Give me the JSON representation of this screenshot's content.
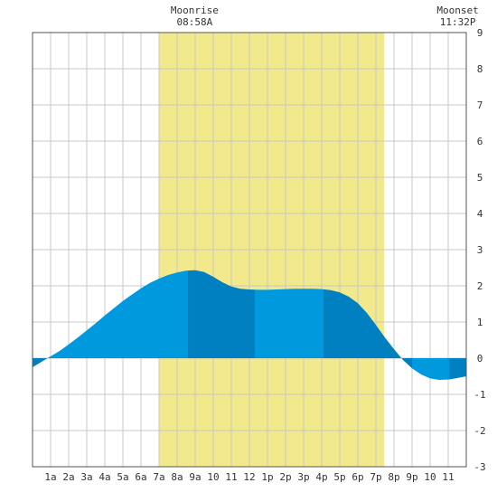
{
  "chart_data": {
    "type": "area",
    "title": "",
    "xlabel": "",
    "ylabel": "",
    "x_ticks": [
      "1a",
      "2a",
      "3a",
      "4a",
      "5a",
      "6a",
      "7a",
      "8a",
      "9a",
      "10",
      "11",
      "12",
      "1p",
      "2p",
      "3p",
      "4p",
      "5p",
      "6p",
      "7p",
      "8p",
      "9p",
      "10",
      "11"
    ],
    "xlim": [
      0,
      24
    ],
    "ylim": [
      -3,
      9
    ],
    "y_ticks": [
      -3,
      -2,
      -1,
      0,
      1,
      2,
      3,
      4,
      5,
      6,
      7,
      8,
      9
    ],
    "grid": true,
    "daylight_band": {
      "start_hour": 7.0,
      "end_hour": 19.45,
      "color": "#f1e98c"
    },
    "annotations": [
      {
        "name": "Moonrise",
        "time": "08:58A",
        "hour": 8.97
      },
      {
        "name": "Moonset",
        "time": "11:32P",
        "hour": 23.53
      }
    ],
    "series": [
      {
        "x": [
          0,
          0.5,
          1,
          1.5,
          2,
          2.5,
          3,
          3.5,
          4,
          4.5,
          5,
          5.5,
          6,
          6.5,
          7,
          7.5,
          8,
          8.5,
          9,
          9.5,
          10,
          10.5,
          11,
          11.5,
          12,
          12.5,
          13,
          13.5,
          14,
          14.5,
          15,
          15.5,
          16,
          16.5,
          17,
          17.5,
          18,
          18.5,
          19,
          19.5,
          20,
          20.5,
          21,
          21.5,
          22,
          22.5,
          23,
          23.5,
          24
        ],
        "values": [
          -0.25,
          -0.1,
          0.05,
          0.2,
          0.38,
          0.57,
          0.77,
          0.97,
          1.18,
          1.38,
          1.58,
          1.76,
          1.93,
          2.08,
          2.2,
          2.3,
          2.37,
          2.42,
          2.43,
          2.38,
          2.25,
          2.1,
          1.98,
          1.92,
          1.9,
          1.89,
          1.89,
          1.9,
          1.91,
          1.92,
          1.92,
          1.92,
          1.91,
          1.88,
          1.82,
          1.7,
          1.52,
          1.25,
          0.92,
          0.57,
          0.25,
          -0.05,
          -0.28,
          -0.45,
          -0.56,
          -0.6,
          -0.59,
          -0.55,
          -0.5
        ]
      }
    ],
    "band_colors": [
      "#0080c0",
      "#0099dd"
    ]
  }
}
